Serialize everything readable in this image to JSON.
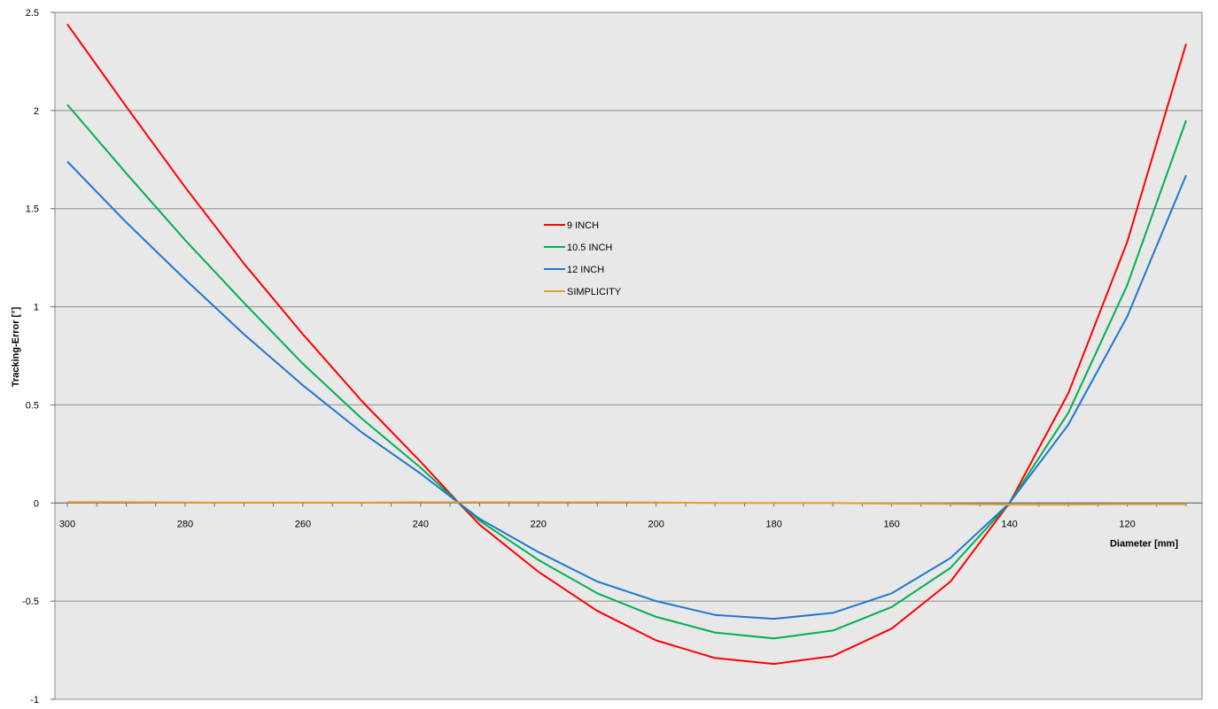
{
  "chart_data": {
    "type": "line",
    "title": "",
    "xlabel": "Diameter [mm]",
    "ylabel": "Tracking-Error [°]",
    "xlim": [
      300,
      110
    ],
    "ylim": [
      -1,
      2.5
    ],
    "x_reversed": true,
    "x_ticks": [
      "300",
      "280",
      "260",
      "240",
      "220",
      "200",
      "180",
      "160",
      "140",
      "120"
    ],
    "y_ticks": [
      "2.5",
      "2",
      "1.5",
      "1",
      "0.5",
      "0",
      "-0.5",
      "-1"
    ],
    "grid": "horizontal",
    "legend_position": "center",
    "background": "#e8e8e8",
    "x": [
      300,
      290,
      280,
      270,
      260,
      250,
      240,
      233.5,
      230,
      220,
      210,
      200,
      190,
      180,
      170,
      160,
      150,
      140,
      130,
      120,
      110
    ],
    "series": [
      {
        "name": "9 INCH",
        "color": "#ff0000",
        "values": [
          2.44,
          2.02,
          1.61,
          1.22,
          0.86,
          0.52,
          0.21,
          0.0,
          -0.11,
          -0.35,
          -0.55,
          -0.7,
          -0.79,
          -0.82,
          -0.78,
          -0.64,
          -0.4,
          0.0,
          0.56,
          1.33,
          2.34
        ]
      },
      {
        "name": "10.5 INCH",
        "color": "#00b050",
        "values": [
          2.03,
          1.68,
          1.34,
          1.02,
          0.71,
          0.43,
          0.18,
          0.0,
          -0.09,
          -0.29,
          -0.46,
          -0.58,
          -0.66,
          -0.69,
          -0.65,
          -0.53,
          -0.33,
          0.0,
          0.46,
          1.11,
          1.95
        ]
      },
      {
        "name": "12 INCH",
        "color": "#1f77d0",
        "values": [
          1.74,
          1.43,
          1.14,
          0.86,
          0.6,
          0.36,
          0.15,
          0.0,
          -0.08,
          -0.25,
          -0.4,
          -0.5,
          -0.57,
          -0.59,
          -0.56,
          -0.46,
          -0.28,
          0.0,
          0.4,
          0.95,
          1.67
        ]
      },
      {
        "name": "SIMPLICITY",
        "color": "#e0a030",
        "values": [
          0.005,
          0.005,
          0.003,
          0.002,
          0.002,
          0.002,
          0.004,
          0.004,
          0.004,
          0.004,
          0.004,
          0.003,
          0.0,
          0.0,
          0.0,
          -0.003,
          -0.005,
          -0.008,
          -0.008,
          -0.006,
          -0.006
        ]
      }
    ]
  }
}
